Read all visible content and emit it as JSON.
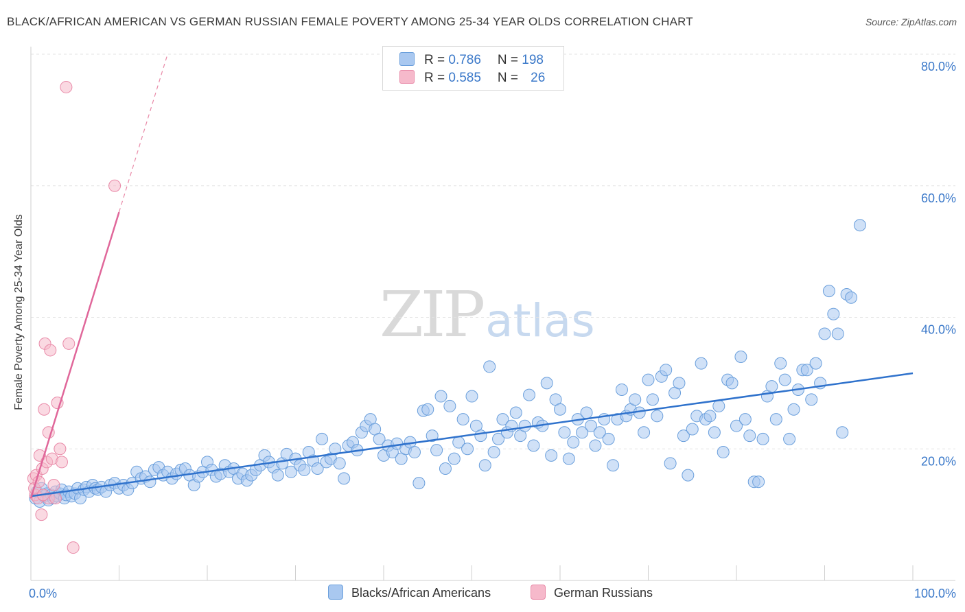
{
  "title": "BLACK/AFRICAN AMERICAN VS GERMAN RUSSIAN FEMALE POVERTY AMONG 25-34 YEAR OLDS CORRELATION CHART",
  "source": "Source: ZipAtlas.com",
  "watermark": {
    "zip": "ZIP",
    "atlas": "atlas"
  },
  "legend": {
    "rows": [
      {
        "r_label": "R = ",
        "r_value": "0.786",
        "n_label": "N = ",
        "n_value": "198"
      },
      {
        "r_label": "R = ",
        "r_value": "0.585",
        "n_label": "N = ",
        "n_value": "26"
      }
    ]
  },
  "chart_data": {
    "type": "scatter",
    "title": "BLACK/AFRICAN AMERICAN VS GERMAN RUSSIAN FEMALE POVERTY AMONG 25-34 YEAR OLDS CORRELATION CHART",
    "xlabel": "",
    "ylabel": "Female Poverty Among 25-34 Year Olds",
    "xlim": [
      0,
      100
    ],
    "ylim": [
      0,
      80
    ],
    "x_tick_labels": [
      "0.0%",
      "100.0%"
    ],
    "y_ticks": [
      20,
      40,
      60,
      80
    ],
    "y_tick_labels": [
      "20.0%",
      "40.0%",
      "60.0%",
      "80.0%"
    ],
    "grid": true,
    "legend_position": "top-center",
    "colors": {
      "blue_fill": "#a9c8f0",
      "blue_stroke": "#6a9fdc",
      "blue_line": "#2f72cc",
      "pink_fill": "#f6b9cb",
      "pink_stroke": "#e98aa8",
      "pink_line": "#e0679a",
      "axis_text": "#3a78c9"
    },
    "series": [
      {
        "name": "Blacks/African Americans",
        "color": "#a9c8f0",
        "trend": {
          "x": [
            0,
            100
          ],
          "y": [
            12.8,
            31.5
          ]
        },
        "points": [
          [
            0.5,
            12.5
          ],
          [
            0.7,
            13.5
          ],
          [
            1.0,
            12.0
          ],
          [
            1.2,
            14.0
          ],
          [
            1.5,
            12.8
          ],
          [
            1.8,
            13.2
          ],
          [
            2.0,
            12.2
          ],
          [
            2.3,
            13.0
          ],
          [
            2.5,
            12.5
          ],
          [
            2.8,
            13.5
          ],
          [
            3.0,
            12.8
          ],
          [
            3.3,
            13.2
          ],
          [
            3.5,
            13.8
          ],
          [
            3.8,
            12.5
          ],
          [
            4.0,
            13.0
          ],
          [
            4.3,
            13.5
          ],
          [
            4.6,
            12.8
          ],
          [
            5.0,
            13.2
          ],
          [
            5.3,
            14.0
          ],
          [
            5.6,
            12.5
          ],
          [
            6.0,
            13.8
          ],
          [
            6.3,
            14.2
          ],
          [
            6.6,
            13.5
          ],
          [
            7.0,
            14.5
          ],
          [
            7.3,
            14.0
          ],
          [
            7.6,
            13.8
          ],
          [
            8.0,
            14.2
          ],
          [
            8.5,
            13.5
          ],
          [
            9.0,
            14.5
          ],
          [
            9.5,
            14.8
          ],
          [
            10.0,
            14.0
          ],
          [
            10.5,
            14.5
          ],
          [
            11.0,
            13.8
          ],
          [
            11.5,
            14.8
          ],
          [
            12.0,
            16.5
          ],
          [
            12.5,
            15.5
          ],
          [
            13.0,
            15.8
          ],
          [
            13.5,
            15.0
          ],
          [
            14.0,
            16.8
          ],
          [
            14.5,
            17.2
          ],
          [
            15.0,
            16.0
          ],
          [
            15.5,
            16.5
          ],
          [
            16.0,
            15.5
          ],
          [
            16.5,
            16.2
          ],
          [
            17.0,
            16.8
          ],
          [
            17.5,
            17.0
          ],
          [
            18.0,
            16.0
          ],
          [
            18.5,
            14.5
          ],
          [
            19.0,
            15.8
          ],
          [
            19.5,
            16.5
          ],
          [
            20.0,
            18.0
          ],
          [
            20.5,
            16.8
          ],
          [
            21.0,
            15.8
          ],
          [
            21.5,
            16.2
          ],
          [
            22.0,
            17.5
          ],
          [
            22.5,
            16.5
          ],
          [
            23.0,
            17.0
          ],
          [
            23.5,
            15.5
          ],
          [
            24.0,
            16.2
          ],
          [
            24.5,
            15.2
          ],
          [
            25.0,
            16.0
          ],
          [
            25.5,
            16.8
          ],
          [
            26.0,
            17.5
          ],
          [
            26.5,
            19.0
          ],
          [
            27.0,
            18.0
          ],
          [
            27.5,
            17.2
          ],
          [
            28.0,
            16.0
          ],
          [
            28.5,
            17.8
          ],
          [
            29.0,
            19.2
          ],
          [
            29.5,
            16.5
          ],
          [
            30.0,
            18.5
          ],
          [
            30.5,
            17.5
          ],
          [
            31.0,
            16.8
          ],
          [
            31.5,
            19.5
          ],
          [
            32.0,
            18.2
          ],
          [
            32.5,
            17.0
          ],
          [
            33.0,
            21.5
          ],
          [
            33.5,
            18.0
          ],
          [
            34.0,
            18.5
          ],
          [
            34.5,
            20.0
          ],
          [
            35.0,
            17.8
          ],
          [
            35.5,
            15.5
          ],
          [
            36.0,
            20.5
          ],
          [
            36.5,
            21.0
          ],
          [
            37.0,
            19.8
          ],
          [
            37.5,
            22.5
          ],
          [
            38.0,
            23.5
          ],
          [
            38.5,
            24.5
          ],
          [
            39.0,
            23.0
          ],
          [
            39.5,
            21.5
          ],
          [
            40.0,
            19.0
          ],
          [
            40.5,
            20.5
          ],
          [
            41.0,
            19.5
          ],
          [
            41.5,
            20.8
          ],
          [
            42.0,
            18.5
          ],
          [
            42.5,
            20.0
          ],
          [
            43.0,
            21.0
          ],
          [
            43.5,
            19.5
          ],
          [
            44.0,
            14.8
          ],
          [
            44.5,
            25.8
          ],
          [
            45.0,
            26.0
          ],
          [
            45.5,
            22.0
          ],
          [
            46.0,
            19.8
          ],
          [
            46.5,
            28.0
          ],
          [
            47.0,
            17.0
          ],
          [
            47.5,
            26.5
          ],
          [
            48.0,
            18.5
          ],
          [
            48.5,
            21.0
          ],
          [
            49.0,
            24.5
          ],
          [
            49.5,
            20.0
          ],
          [
            50.0,
            28.0
          ],
          [
            50.5,
            23.5
          ],
          [
            51.0,
            22.0
          ],
          [
            51.5,
            17.5
          ],
          [
            52.0,
            32.5
          ],
          [
            52.5,
            19.5
          ],
          [
            53.0,
            21.5
          ],
          [
            53.5,
            24.5
          ],
          [
            54.0,
            22.5
          ],
          [
            54.5,
            23.5
          ],
          [
            55.0,
            25.5
          ],
          [
            55.5,
            22.0
          ],
          [
            56.0,
            23.5
          ],
          [
            56.5,
            28.2
          ],
          [
            57.0,
            20.5
          ],
          [
            57.5,
            24.0
          ],
          [
            58.0,
            23.5
          ],
          [
            58.5,
            30.0
          ],
          [
            59.0,
            19.0
          ],
          [
            59.5,
            27.5
          ],
          [
            60.0,
            26.0
          ],
          [
            60.5,
            22.5
          ],
          [
            61.0,
            18.5
          ],
          [
            61.5,
            21.0
          ],
          [
            62.0,
            24.5
          ],
          [
            62.5,
            22.5
          ],
          [
            63.0,
            25.5
          ],
          [
            63.5,
            23.5
          ],
          [
            64.0,
            20.5
          ],
          [
            64.5,
            22.5
          ],
          [
            65.0,
            24.5
          ],
          [
            65.5,
            21.5
          ],
          [
            66.0,
            17.5
          ],
          [
            66.5,
            24.5
          ],
          [
            67.0,
            29.0
          ],
          [
            67.5,
            25.0
          ],
          [
            68.0,
            26.0
          ],
          [
            68.5,
            27.5
          ],
          [
            69.0,
            25.5
          ],
          [
            69.5,
            22.5
          ],
          [
            70.0,
            30.5
          ],
          [
            70.5,
            27.5
          ],
          [
            71.0,
            25.0
          ],
          [
            71.5,
            31.0
          ],
          [
            72.0,
            32.0
          ],
          [
            72.5,
            17.8
          ],
          [
            73.0,
            28.5
          ],
          [
            73.5,
            30.0
          ],
          [
            74.0,
            22.0
          ],
          [
            74.5,
            16.0
          ],
          [
            75.0,
            23.0
          ],
          [
            75.5,
            25.0
          ],
          [
            76.0,
            33.0
          ],
          [
            76.5,
            24.5
          ],
          [
            77.0,
            25.0
          ],
          [
            77.5,
            22.5
          ],
          [
            78.0,
            26.5
          ],
          [
            78.5,
            19.5
          ],
          [
            79.0,
            30.5
          ],
          [
            79.5,
            30.0
          ],
          [
            80.0,
            23.5
          ],
          [
            80.5,
            34.0
          ],
          [
            81.0,
            24.5
          ],
          [
            81.5,
            22.0
          ],
          [
            82.0,
            15.0
          ],
          [
            82.5,
            15.0
          ],
          [
            83.0,
            21.5
          ],
          [
            83.5,
            28.0
          ],
          [
            84.0,
            29.5
          ],
          [
            84.5,
            24.5
          ],
          [
            85.0,
            33.0
          ],
          [
            85.5,
            30.5
          ],
          [
            86.0,
            21.5
          ],
          [
            86.5,
            26.0
          ],
          [
            87.0,
            29.0
          ],
          [
            87.5,
            32.0
          ],
          [
            88.0,
            32.0
          ],
          [
            88.5,
            27.5
          ],
          [
            89.0,
            33.0
          ],
          [
            89.5,
            30.0
          ],
          [
            90.0,
            37.5
          ],
          [
            90.5,
            44.0
          ],
          [
            91.0,
            40.5
          ],
          [
            91.5,
            37.5
          ],
          [
            92.0,
            22.5
          ],
          [
            92.5,
            43.5
          ],
          [
            93.0,
            43.0
          ],
          [
            94.0,
            54.0
          ]
        ]
      },
      {
        "name": "German Russians",
        "color": "#f6b9cb",
        "trend": {
          "x": [
            0,
            10
          ],
          "y": [
            12.5,
            56
          ]
        },
        "trend_dashed": {
          "x": [
            10,
            15.5
          ],
          "y": [
            56,
            80
          ]
        },
        "points": [
          [
            0.3,
            15.5
          ],
          [
            0.5,
            13.0
          ],
          [
            0.6,
            16.0
          ],
          [
            0.8,
            12.5
          ],
          [
            1.0,
            19.0
          ],
          [
            1.2,
            10.0
          ],
          [
            1.3,
            17.0
          ],
          [
            1.5,
            26.0
          ],
          [
            1.6,
            36.0
          ],
          [
            1.8,
            18.0
          ],
          [
            2.0,
            12.5
          ],
          [
            2.0,
            22.5
          ],
          [
            2.2,
            35.0
          ],
          [
            2.4,
            18.5
          ],
          [
            2.6,
            14.5
          ],
          [
            2.8,
            12.5
          ],
          [
            3.0,
            27.0
          ],
          [
            3.3,
            20.0
          ],
          [
            3.5,
            18.0
          ],
          [
            4.0,
            75.0
          ],
          [
            4.3,
            36.0
          ],
          [
            4.8,
            5.0
          ],
          [
            9.5,
            60.0
          ],
          [
            0.4,
            14.0
          ],
          [
            1.4,
            13.0
          ],
          [
            0.9,
            15.0
          ]
        ]
      }
    ]
  },
  "bottom_legend": [
    {
      "label": "Blacks/African Americans"
    },
    {
      "label": "German Russians"
    }
  ]
}
